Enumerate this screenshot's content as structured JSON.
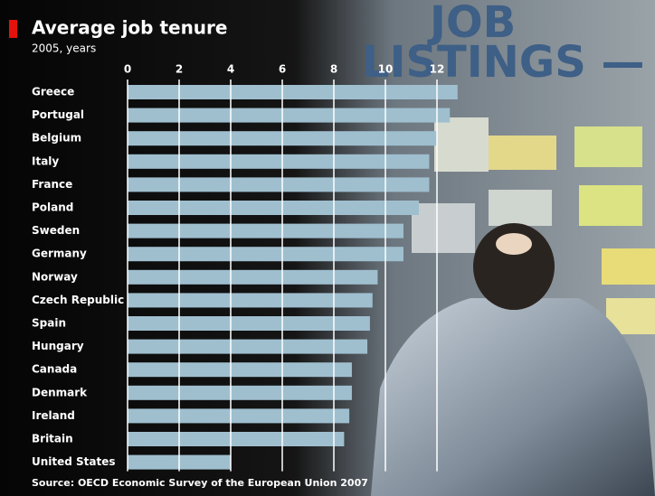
{
  "chart_data": {
    "type": "barh",
    "title": "Average job tenure",
    "subtitle": "2005, years",
    "source": "Source: OECD Economic Survey of the European Union 2007",
    "categories": [
      "Greece",
      "Portugal",
      "Belgium",
      "Italy",
      "France",
      "Poland",
      "Sweden",
      "Germany",
      "Norway",
      "Czech Republic",
      "Spain",
      "Hungary",
      "Canada",
      "Denmark",
      "Ireland",
      "Britain",
      "United States"
    ],
    "values": [
      12.8,
      12.5,
      12.0,
      11.7,
      11.7,
      11.3,
      10.7,
      10.7,
      9.7,
      9.5,
      9.4,
      9.3,
      8.7,
      8.7,
      8.6,
      8.4,
      4.0
    ],
    "color": "#9fbfcf",
    "xlim": [
      0,
      13
    ],
    "xticks": [
      0,
      2,
      4,
      6,
      8,
      10,
      12
    ],
    "grid": true
  },
  "background_text": [
    "JOB",
    "LISTINGS —"
  ]
}
